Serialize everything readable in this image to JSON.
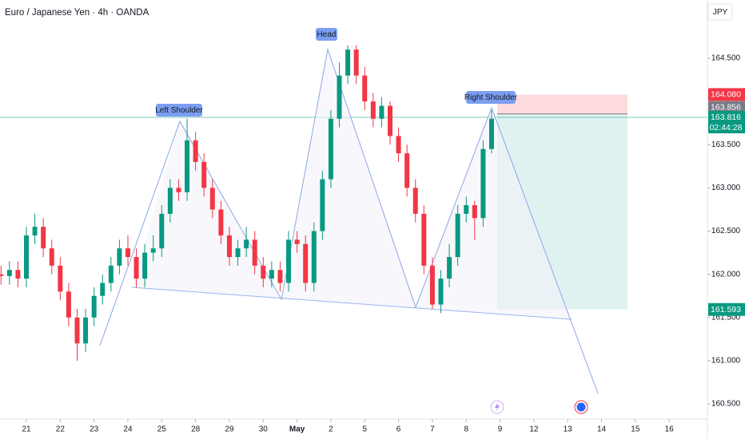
{
  "chart_data": {
    "type": "candlestick",
    "title": "Euro / Japanese Yen · 4h · OANDA",
    "currency": "JPY",
    "up_color": "#089981",
    "down_color": "#f23645",
    "grid": false,
    "ylim": [
      160.325,
      165.174
    ],
    "yticks": [
      {
        "value": 160.5,
        "label": "160.500"
      },
      {
        "value": 161,
        "label": "161.000"
      },
      {
        "value": 161.5,
        "label": "161.500"
      },
      {
        "value": 162,
        "label": "162.000"
      },
      {
        "value": 162.5,
        "label": "162.500"
      },
      {
        "value": 163,
        "label": "163.000"
      },
      {
        "value": 163.5,
        "label": "163.500"
      },
      {
        "value": 164.5,
        "label": "164.500"
      }
    ],
    "xlim": [
      -0.78,
      20.13
    ],
    "xticks": [
      {
        "value": 0,
        "label": "21"
      },
      {
        "value": 1,
        "label": "22"
      },
      {
        "value": 2,
        "label": "23"
      },
      {
        "value": 3,
        "label": "24"
      },
      {
        "value": 4,
        "label": "25"
      },
      {
        "value": 5,
        "label": "28"
      },
      {
        "value": 6,
        "label": "29"
      },
      {
        "value": 7,
        "label": "30"
      },
      {
        "value": 8,
        "label": "May"
      },
      {
        "value": 9,
        "label": "2"
      },
      {
        "value": 10,
        "label": "5"
      },
      {
        "value": 11,
        "label": "6"
      },
      {
        "value": 12,
        "label": "7"
      },
      {
        "value": 13,
        "label": "8"
      },
      {
        "value": 14,
        "label": "9"
      },
      {
        "value": 15,
        "label": "12"
      },
      {
        "value": 16,
        "label": "13"
      },
      {
        "value": 17,
        "label": "14"
      },
      {
        "value": 18,
        "label": "15"
      },
      {
        "value": 19,
        "label": "16"
      }
    ],
    "open": [
      162.0,
      161.98,
      162.05,
      161.95,
      162.45,
      162.55,
      162.3,
      162.1,
      161.8,
      161.5,
      161.2,
      161.5,
      161.75,
      161.9,
      162.1,
      162.3,
      162.2,
      161.95,
      162.25,
      162.3,
      162.7,
      163.0,
      162.95,
      163.55,
      163.3,
      163.0,
      162.75,
      162.45,
      162.2,
      162.3,
      162.4,
      162.1,
      161.95,
      162.05,
      161.9,
      162.4,
      162.35,
      161.9,
      162.5,
      163.1,
      163.8,
      164.3,
      164.6,
      164.3,
      164.0,
      163.8,
      163.95,
      163.6,
      163.4,
      163.0,
      162.7,
      162.1,
      161.65,
      161.95,
      162.2,
      162.7,
      162.8,
      162.65,
      163.45
    ],
    "high": [
      162.1,
      162.15,
      162.15,
      162.55,
      162.7,
      162.65,
      162.4,
      162.2,
      161.9,
      161.6,
      161.6,
      161.85,
      162.0,
      162.2,
      162.4,
      162.45,
      162.3,
      162.35,
      162.45,
      162.8,
      163.1,
      163.1,
      163.8,
      163.65,
      163.4,
      163.1,
      162.85,
      162.55,
      162.4,
      162.55,
      162.5,
      162.2,
      162.15,
      162.15,
      162.5,
      162.5,
      162.45,
      162.6,
      163.2,
      163.9,
      164.45,
      164.65,
      164.65,
      164.4,
      164.1,
      164.05,
      164.0,
      163.7,
      163.5,
      163.1,
      162.8,
      162.2,
      162.05,
      162.35,
      162.8,
      162.9,
      162.85,
      163.55,
      163.9
    ],
    "low": [
      161.88,
      161.88,
      161.85,
      161.85,
      162.35,
      162.2,
      162.0,
      161.7,
      161.4,
      161.0,
      161.1,
      161.4,
      161.65,
      161.8,
      162.0,
      162.1,
      161.85,
      161.85,
      162.15,
      162.2,
      162.6,
      162.85,
      162.85,
      163.2,
      162.9,
      162.65,
      162.35,
      162.1,
      162.1,
      162.2,
      162.0,
      161.85,
      161.85,
      161.8,
      161.8,
      162.25,
      161.8,
      161.8,
      162.4,
      163.0,
      163.7,
      164.2,
      164.2,
      163.9,
      163.7,
      163.7,
      163.5,
      163.3,
      162.9,
      162.6,
      162.0,
      161.6,
      161.55,
      161.85,
      162.1,
      162.6,
      162.4,
      162.55,
      163.4
    ],
    "close": [
      161.98,
      162.05,
      161.95,
      162.45,
      162.55,
      162.3,
      162.1,
      161.8,
      161.5,
      161.2,
      161.5,
      161.75,
      161.9,
      162.1,
      162.3,
      162.2,
      161.95,
      162.25,
      162.3,
      162.7,
      163.0,
      162.95,
      163.55,
      163.3,
      163.0,
      162.75,
      162.45,
      162.2,
      162.3,
      162.4,
      162.1,
      161.95,
      162.05,
      161.9,
      162.4,
      162.35,
      161.9,
      162.5,
      163.1,
      163.8,
      164.3,
      164.6,
      164.3,
      164.0,
      163.8,
      163.95,
      163.6,
      163.4,
      163.0,
      162.7,
      162.1,
      161.65,
      161.95,
      162.2,
      162.7,
      162.8,
      162.65,
      163.45,
      163.8
    ],
    "annotations": [
      "Left Shoulder",
      "Head",
      "Right Shoulder"
    ],
    "position": {
      "stop": 164.08,
      "stop_label": "164.080",
      "entry": 163.856,
      "entry_label": "163.856",
      "target": 161.593,
      "target_label": "161.593"
    },
    "last_price": 163.816,
    "last_price_label": "163.816",
    "countdown": "02:44:28"
  }
}
